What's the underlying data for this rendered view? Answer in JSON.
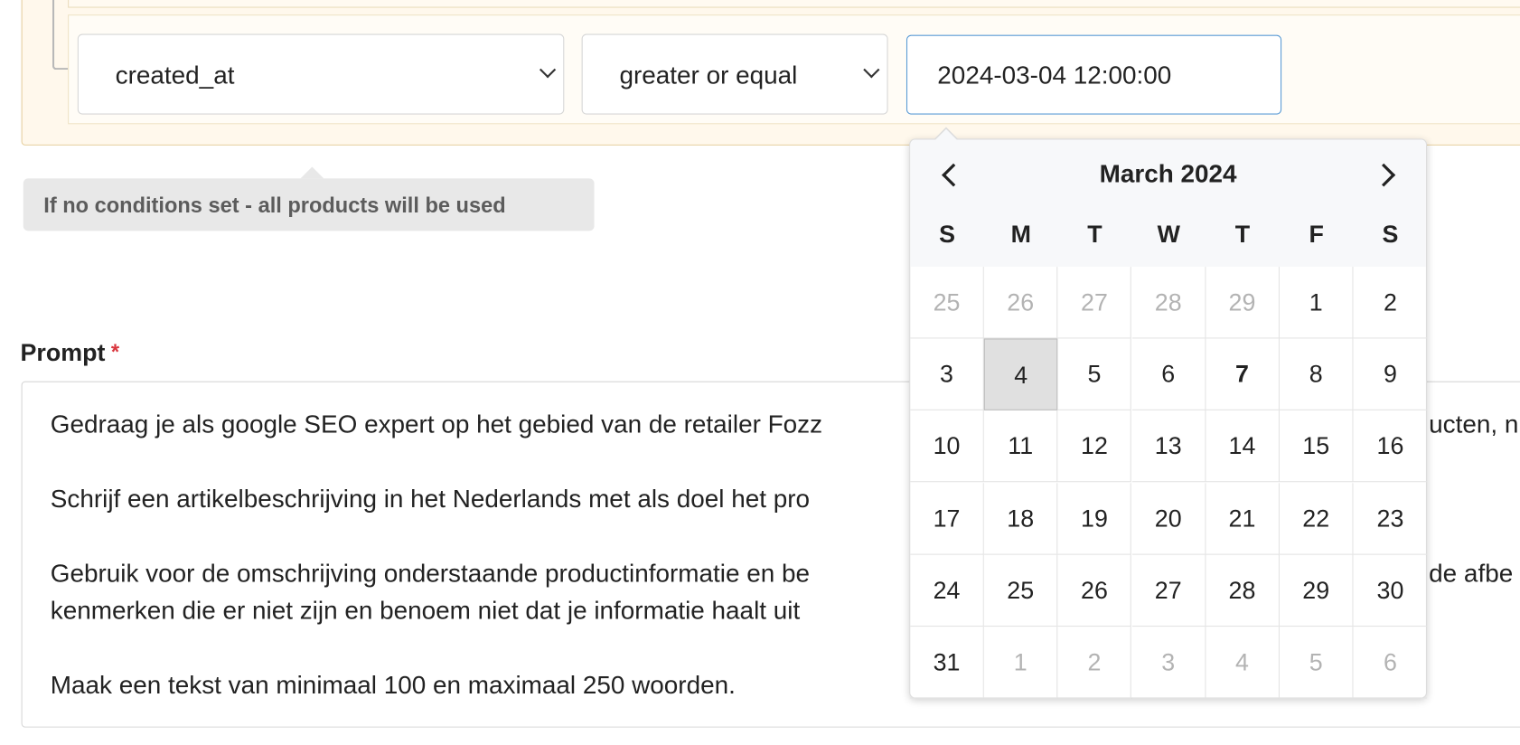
{
  "condition": {
    "field": "created_at",
    "operator": "greater or equal",
    "value": "2024-03-04 12:00:00"
  },
  "hint": "If no conditions set - all products will be used",
  "prompt": {
    "label": "Prompt",
    "required_mark": "*",
    "lines": [
      "Gedraag je als google SEO expert op het gebied van de retailer Fozz",
      "Schrijf een artikelbeschrijving in het Nederlands met als doel het pro",
      "Gebruik voor de omschrijving onderstaande productinformatie en be",
      "kenmerken die er niet zijn en benoem niet dat je informatie haalt uit",
      "Maak een tekst van minimaal 100 en maximaal 250 woorden."
    ],
    "right_fragments": [
      "ucten, n",
      "de afbe"
    ]
  },
  "calendar": {
    "month": "March 2024",
    "weekdays": [
      "S",
      "M",
      "T",
      "W",
      "T",
      "F",
      "S"
    ],
    "weeks": [
      [
        "25",
        "26",
        "27",
        "28",
        "29",
        "1",
        "2"
      ],
      [
        "3",
        "4",
        "5",
        "6",
        "7",
        "8",
        "9"
      ],
      [
        "10",
        "11",
        "12",
        "13",
        "14",
        "15",
        "16"
      ],
      [
        "17",
        "18",
        "19",
        "20",
        "21",
        "22",
        "23"
      ],
      [
        "24",
        "25",
        "26",
        "27",
        "28",
        "29",
        "30"
      ],
      [
        "31",
        "1",
        "2",
        "3",
        "4",
        "5",
        "6"
      ]
    ]
  }
}
